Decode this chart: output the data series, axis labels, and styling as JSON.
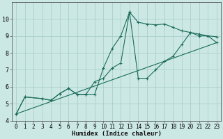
{
  "xlabel": "Humidex (Indice chaleur)",
  "xlim": [
    -0.5,
    23.5
  ],
  "ylim": [
    4,
    11
  ],
  "yticks": [
    4,
    5,
    6,
    7,
    8,
    9,
    10
  ],
  "xticks": [
    0,
    1,
    2,
    3,
    4,
    5,
    6,
    7,
    8,
    9,
    10,
    11,
    12,
    13,
    14,
    15,
    16,
    17,
    18,
    19,
    20,
    21,
    22,
    23
  ],
  "bg_color": "#cce8e4",
  "grid_color": "#aacfcb",
  "line_color": "#1a6b5a",
  "line1_x": [
    0,
    1,
    3,
    4,
    5,
    6,
    7,
    8,
    9,
    10,
    11,
    12,
    13,
    14,
    15,
    16,
    17,
    18,
    19,
    20,
    21,
    22,
    23
  ],
  "line1_y": [
    4.4,
    5.4,
    5.3,
    5.2,
    5.6,
    5.9,
    5.55,
    5.55,
    5.55,
    7.1,
    8.25,
    9.0,
    10.4,
    9.8,
    9.7,
    9.65,
    9.7,
    9.5,
    9.3,
    9.2,
    9.1,
    9.0,
    8.95
  ],
  "line2_x": [
    0,
    1,
    3,
    4,
    5,
    6,
    7,
    8,
    9,
    10,
    11,
    12,
    13,
    14,
    15,
    16,
    17,
    18,
    19,
    20,
    21,
    22,
    23
  ],
  "line2_y": [
    4.4,
    5.4,
    5.3,
    5.2,
    5.6,
    5.9,
    5.55,
    5.55,
    6.3,
    6.5,
    7.1,
    7.4,
    10.4,
    6.5,
    6.5,
    7.0,
    7.5,
    7.8,
    8.5,
    9.2,
    9.0,
    9.0,
    8.6
  ],
  "line3_x": [
    0,
    23
  ],
  "line3_y": [
    4.4,
    8.6
  ]
}
